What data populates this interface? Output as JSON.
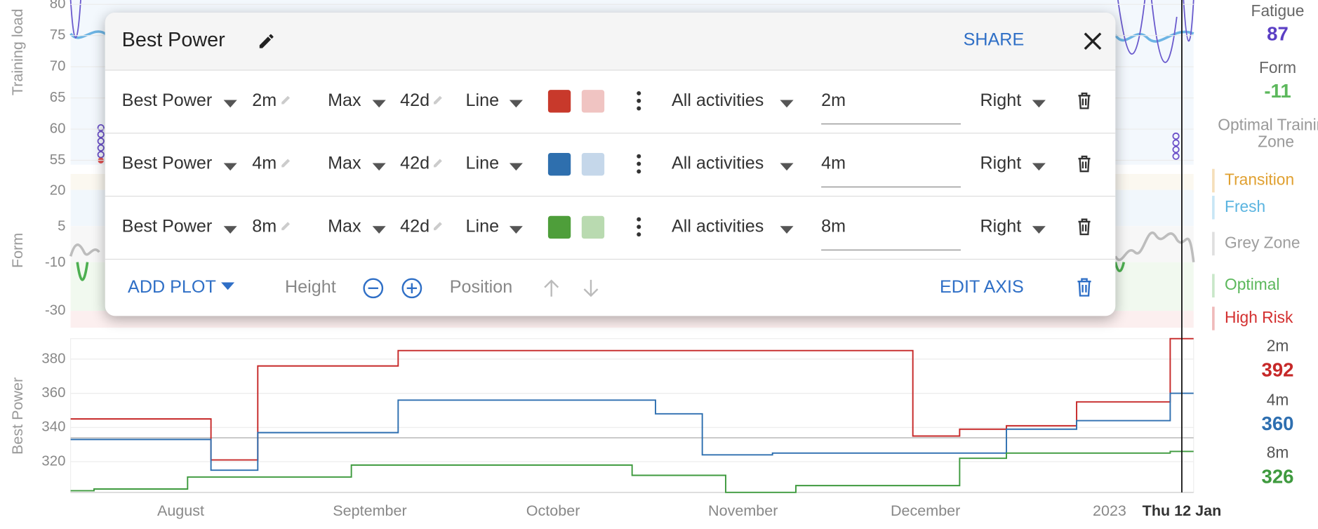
{
  "training_load_panel": {
    "axis_label": "Training load",
    "yticks": [
      80,
      75,
      70,
      65,
      60,
      55
    ],
    "ylim": [
      54.3,
      80.7
    ]
  },
  "form_panel": {
    "axis_label": "Form",
    "yticks": [
      20,
      5,
      -10,
      -30
    ],
    "ylim": [
      -37,
      27
    ]
  },
  "best_power": {
    "type": "line",
    "axis_label": "Best Power",
    "ylim": [
      302,
      392
    ],
    "yticks": [
      380,
      360,
      340,
      320
    ],
    "x_labels": [
      "August",
      "September",
      "October",
      "November",
      "December",
      "2023"
    ],
    "cursor_label": "Thu 12 Jan",
    "series": [
      {
        "name": "2m",
        "color": "#c62828",
        "values": [
          345,
          345,
          345,
          345,
          345,
          345,
          321,
          321,
          376,
          376,
          376,
          376,
          376,
          376,
          385,
          385,
          385,
          385,
          385,
          385,
          385,
          385,
          385,
          385,
          385,
          385,
          385,
          385,
          385,
          385,
          385,
          385,
          385,
          385,
          385,
          385,
          335,
          335,
          339,
          339,
          341,
          341,
          341,
          355,
          355,
          355,
          355,
          392
        ]
      },
      {
        "name": "4m",
        "color": "#2e6fb0",
        "values": [
          333,
          333,
          333,
          333,
          333,
          333,
          315,
          315,
          337,
          337,
          337,
          337,
          337,
          337,
          356,
          356,
          356,
          356,
          356,
          356,
          356,
          356,
          356,
          356,
          356,
          348,
          348,
          324,
          324,
          324,
          325,
          325,
          325,
          325,
          325,
          325,
          325,
          325,
          325,
          325,
          339,
          339,
          339,
          344,
          344,
          344,
          344,
          360
        ]
      },
      {
        "name": "8m",
        "color": "#3e9a3e",
        "values": [
          303,
          304,
          304,
          304,
          304,
          311,
          311,
          311,
          311,
          311,
          311,
          311,
          318,
          318,
          318,
          318,
          318,
          318,
          318,
          318,
          318,
          318,
          318,
          318,
          312,
          312,
          312,
          312,
          302,
          302,
          302,
          306,
          306,
          306,
          306,
          306,
          306,
          306,
          322,
          322,
          325,
          325,
          325,
          325,
          325,
          325,
          325,
          326
        ]
      }
    ]
  },
  "sidebar": {
    "fatigue_label": "Fatigue",
    "fatigue_value": "87",
    "form_label": "Form",
    "form_value": "-11",
    "zone_title": "Optimal Training Zone",
    "zones": [
      {
        "name": "Transition",
        "color": "#e0a030"
      },
      {
        "name": "Fresh",
        "color": "#5ab4e0"
      },
      {
        "name": "Grey Zone",
        "color": "#9e9e9e"
      },
      {
        "name": "Optimal",
        "color": "#5cb85c"
      },
      {
        "name": "High Risk",
        "color": "#d32f2f"
      }
    ]
  },
  "dialog": {
    "title": "Best Power",
    "share": "SHARE",
    "rows": [
      {
        "metric": "Best Power",
        "duration": "2m",
        "aggregate": "Max",
        "window": "42d",
        "style": "Line",
        "color": "#c8392b",
        "fill_color": "#f0c4c2",
        "filter": "All activities",
        "label": "2m",
        "axis": "Right"
      },
      {
        "metric": "Best Power",
        "duration": "4m",
        "aggregate": "Max",
        "window": "42d",
        "style": "Line",
        "color": "#2e6fae",
        "fill_color": "#c5d7ea",
        "filter": "All activities",
        "label": "4m",
        "axis": "Right"
      },
      {
        "metric": "Best Power",
        "duration": "8m",
        "aggregate": "Max",
        "window": "42d",
        "style": "Line",
        "color": "#4e9e3a",
        "fill_color": "#b9dab0",
        "filter": "All activities",
        "label": "8m",
        "axis": "Right"
      }
    ],
    "add_plot": "ADD PLOT",
    "height": "Height",
    "position": "Position",
    "edit_axis": "EDIT AXIS"
  }
}
